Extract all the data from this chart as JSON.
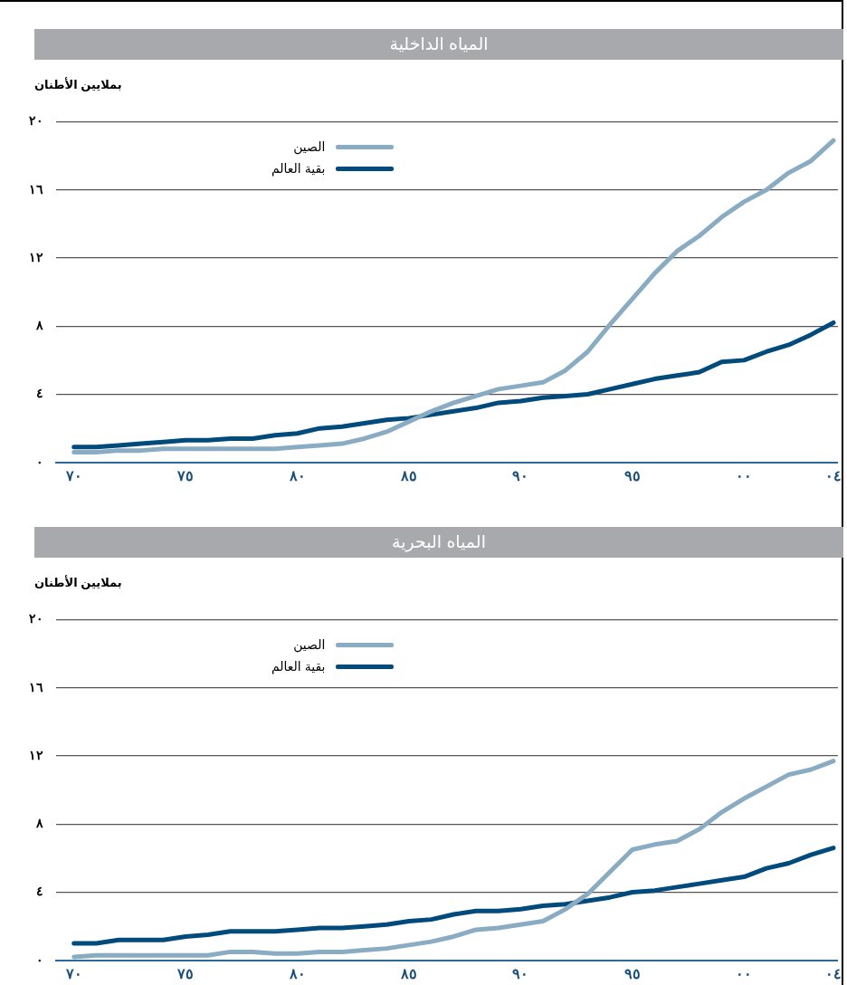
{
  "chart_data": [
    {
      "type": "line",
      "title": "المياه الداخلية",
      "ylabel": "بملايين الأطنان",
      "x": [
        1970,
        1971,
        1972,
        1973,
        1974,
        1975,
        1976,
        1977,
        1978,
        1979,
        1980,
        1981,
        1982,
        1983,
        1984,
        1985,
        1986,
        1987,
        1988,
        1989,
        1990,
        1991,
        1992,
        1993,
        1994,
        1995,
        1996,
        1997,
        1998,
        1999,
        2000,
        2001,
        2002,
        2003,
        2004
      ],
      "series": [
        {
          "name": "الصين",
          "color": "#8aacc2",
          "values": [
            0.6,
            0.6,
            0.7,
            0.7,
            0.8,
            0.8,
            0.8,
            0.8,
            0.8,
            0.8,
            0.9,
            1.0,
            1.1,
            1.4,
            1.8,
            2.4,
            3.0,
            3.5,
            3.9,
            4.3,
            4.5,
            4.7,
            5.4,
            6.5,
            8.1,
            9.6,
            11.1,
            12.4,
            13.3,
            14.4,
            15.3,
            16.0,
            17.0,
            17.7,
            18.9
          ]
        },
        {
          "name": "بقية العالم",
          "color": "#004a7c",
          "values": [
            0.9,
            0.9,
            1.0,
            1.1,
            1.2,
            1.3,
            1.3,
            1.4,
            1.4,
            1.6,
            1.7,
            2.0,
            2.1,
            2.3,
            2.5,
            2.6,
            2.8,
            3.0,
            3.2,
            3.5,
            3.6,
            3.8,
            3.9,
            4.0,
            4.3,
            4.6,
            4.9,
            5.1,
            5.3,
            5.9,
            6.0,
            6.5,
            6.9,
            7.5,
            8.2
          ]
        }
      ],
      "xlim": [
        1969.2,
        2004.2
      ],
      "xticks": [
        {
          "value": 1970,
          "label": "٧٠"
        },
        {
          "value": 1975,
          "label": "٧٥"
        },
        {
          "value": 1980,
          "label": "٨٠"
        },
        {
          "value": 1985,
          "label": "٨٥"
        },
        {
          "value": 1990,
          "label": "٩٠"
        },
        {
          "value": 1995,
          "label": "٩٥"
        },
        {
          "value": 2000,
          "label": "٠٠"
        },
        {
          "value": 2004,
          "label": "٠٤"
        }
      ],
      "ylim": [
        0,
        20
      ],
      "yticks": [
        {
          "value": 0,
          "label": "٠"
        },
        {
          "value": 4,
          "label": "٤"
        },
        {
          "value": 8,
          "label": "٨"
        },
        {
          "value": 12,
          "label": "١٢"
        },
        {
          "value": 16,
          "label": "١٦"
        },
        {
          "value": 20,
          "label": "٢٠"
        }
      ],
      "grid": "y",
      "legend": "top left",
      "marker": "none",
      "line_style": "solid"
    },
    {
      "type": "line",
      "title": "المياه البحرية",
      "ylabel": "بملايين الأطنان",
      "x": [
        1970,
        1971,
        1972,
        1973,
        1974,
        1975,
        1976,
        1977,
        1978,
        1979,
        1980,
        1981,
        1982,
        1983,
        1984,
        1985,
        1986,
        1987,
        1988,
        1989,
        1990,
        1991,
        1992,
        1993,
        1994,
        1995,
        1996,
        1997,
        1998,
        1999,
        2000,
        2001,
        2002,
        2003,
        2004
      ],
      "series": [
        {
          "name": "الصين",
          "color": "#8aacc2",
          "values": [
            0.2,
            0.3,
            0.3,
            0.3,
            0.3,
            0.3,
            0.3,
            0.5,
            0.5,
            0.4,
            0.4,
            0.5,
            0.5,
            0.6,
            0.7,
            0.9,
            1.1,
            1.4,
            1.8,
            1.9,
            2.1,
            2.3,
            3.0,
            3.9,
            5.2,
            6.5,
            6.8,
            7.0,
            7.7,
            8.7,
            9.5,
            10.2,
            10.9,
            11.2,
            11.7
          ]
        },
        {
          "name": "بقية العالم",
          "color": "#004a7c",
          "values": [
            1.0,
            1.0,
            1.2,
            1.2,
            1.2,
            1.4,
            1.5,
            1.7,
            1.7,
            1.7,
            1.8,
            1.9,
            1.9,
            2.0,
            2.1,
            2.3,
            2.4,
            2.7,
            2.9,
            2.9,
            3.0,
            3.2,
            3.3,
            3.5,
            3.7,
            4.0,
            4.1,
            4.3,
            4.5,
            4.7,
            4.9,
            5.4,
            5.7,
            6.2,
            6.6
          ]
        }
      ],
      "xlim": [
        1969.2,
        2004.2
      ],
      "xticks": [
        {
          "value": 1970,
          "label": "٧٠"
        },
        {
          "value": 1975,
          "label": "٧٥"
        },
        {
          "value": 1980,
          "label": "٨٠"
        },
        {
          "value": 1985,
          "label": "٨٥"
        },
        {
          "value": 1990,
          "label": "٩٠"
        },
        {
          "value": 1995,
          "label": "٩٥"
        },
        {
          "value": 2000,
          "label": "٠٠"
        },
        {
          "value": 2004,
          "label": "٠٤"
        }
      ],
      "ylim": [
        0,
        20
      ],
      "yticks": [
        {
          "value": 0,
          "label": "٠"
        },
        {
          "value": 4,
          "label": "٤"
        },
        {
          "value": 8,
          "label": "٨"
        },
        {
          "value": 12,
          "label": "١٢"
        },
        {
          "value": 16,
          "label": "١٦"
        },
        {
          "value": 20,
          "label": "٢٠"
        }
      ],
      "grid": "y",
      "legend": "top left",
      "marker": "none",
      "line_style": "solid"
    }
  ]
}
